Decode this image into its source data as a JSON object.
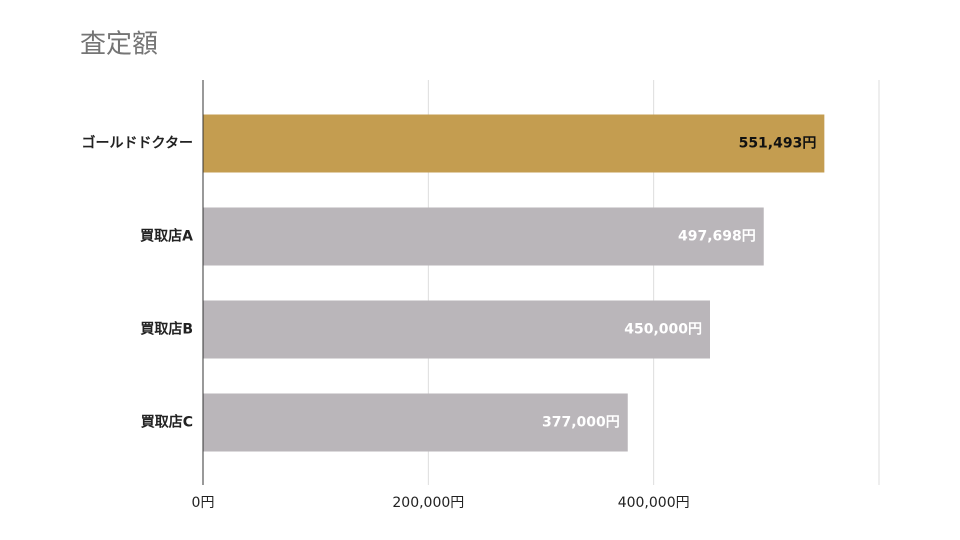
{
  "chart_data": {
    "type": "barh",
    "title": "査定額",
    "categories": [
      "ゴールドドクター",
      "買取店A",
      "買取店B",
      "買取店C"
    ],
    "values": [
      551493,
      497698,
      450000,
      377000
    ],
    "value_labels": [
      "551,493円",
      "497,698円",
      "450,000円",
      "377,000円"
    ],
    "color": "#bab6ba",
    "highlight": 0,
    "highlight_color": "#c49d50",
    "xlim": [
      0,
      600000
    ],
    "xticks": [
      {
        "value": 0,
        "label": "0円"
      },
      {
        "value": 200000,
        "label": "200,000円"
      },
      {
        "value": 400000,
        "label": "400,000円"
      }
    ],
    "grid": true
  }
}
